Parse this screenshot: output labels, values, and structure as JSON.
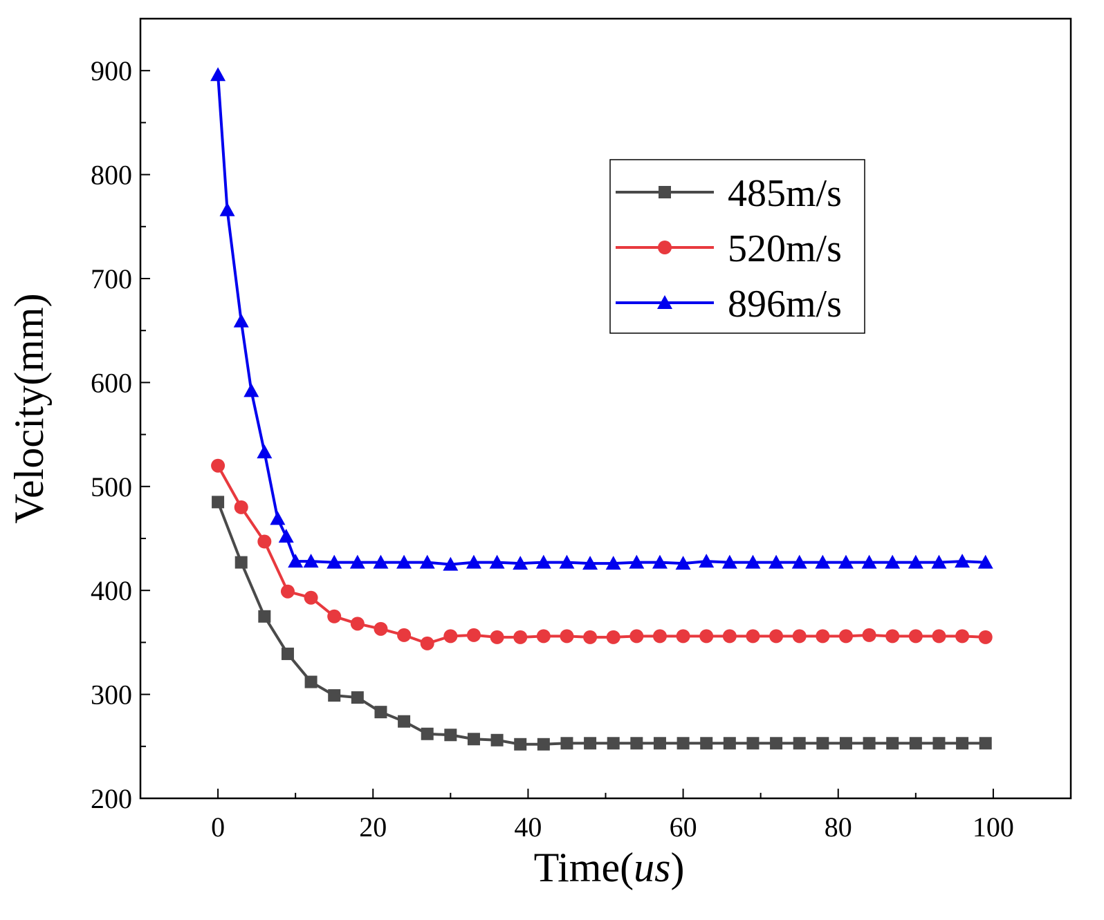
{
  "chart_data": {
    "type": "line",
    "title": "",
    "xlabel": "Time(us)",
    "xlabel_main": "Time(",
    "xlabel_italic": "us",
    "xlabel_close": ")",
    "ylabel": "Velocity(mm)",
    "xlim": [
      -10,
      110
    ],
    "ylim": [
      200,
      950
    ],
    "xticks": [
      0,
      20,
      40,
      60,
      80,
      100
    ],
    "xtick_labels": [
      "0",
      "20",
      "40",
      "60",
      "80",
      "100"
    ],
    "yticks": [
      200,
      300,
      400,
      500,
      600,
      700,
      800,
      900
    ],
    "ytick_labels": [
      "200",
      "300",
      "400",
      "500",
      "600",
      "700",
      "800",
      "900"
    ],
    "grid": false,
    "legend_position": "top-right",
    "series": [
      {
        "name": "485m/s",
        "color": "#4a4a4a",
        "marker": "square",
        "x": [
          0,
          3,
          6,
          9,
          12,
          15,
          18,
          21,
          24,
          27,
          30,
          33,
          36,
          39,
          42,
          45,
          48,
          51,
          54,
          57,
          60,
          63,
          66,
          69,
          72,
          75,
          78,
          81,
          84,
          87,
          90,
          93,
          96,
          99
        ],
        "y": [
          485,
          427,
          375,
          339,
          312,
          299,
          297,
          283,
          274,
          262,
          261,
          257,
          256,
          252,
          252,
          253,
          253,
          253,
          253,
          253,
          253,
          253,
          253,
          253,
          253,
          253,
          253,
          253,
          253,
          253,
          253,
          253,
          253,
          253
        ]
      },
      {
        "name": "520m/s",
        "color": "#e8393e",
        "marker": "circle",
        "x": [
          0,
          3,
          6,
          9,
          12,
          15,
          18,
          21,
          24,
          27,
          30,
          33,
          36,
          39,
          42,
          45,
          48,
          51,
          54,
          57,
          60,
          63,
          66,
          69,
          72,
          75,
          78,
          81,
          84,
          87,
          90,
          93,
          96,
          99
        ],
        "y": [
          520,
          480,
          447,
          399,
          393,
          375,
          368,
          363,
          357,
          349,
          356,
          357,
          355,
          355,
          356,
          356,
          355,
          355,
          356,
          356,
          356,
          356,
          356,
          356,
          356,
          356,
          356,
          356,
          357,
          356,
          356,
          356,
          356,
          355
        ]
      },
      {
        "name": "896m/s",
        "color": "#0000ee",
        "marker": "triangle",
        "x": [
          0,
          1.2,
          3,
          4.3,
          6,
          7.7,
          8.8,
          10,
          12,
          15,
          18,
          21,
          24,
          27,
          30,
          33,
          36,
          39,
          42,
          45,
          48,
          51,
          54,
          57,
          60,
          63,
          66,
          69,
          72,
          75,
          78,
          81,
          84,
          87,
          90,
          93,
          96,
          99
        ],
        "y": [
          896,
          766,
          659,
          592,
          533,
          469,
          452,
          428,
          428,
          427,
          427,
          427,
          427,
          427,
          425,
          427,
          427,
          426,
          427,
          427,
          426,
          426,
          427,
          427,
          426,
          428,
          427,
          427,
          427,
          427,
          427,
          427,
          427,
          427,
          427,
          427,
          428,
          427
        ]
      }
    ]
  }
}
